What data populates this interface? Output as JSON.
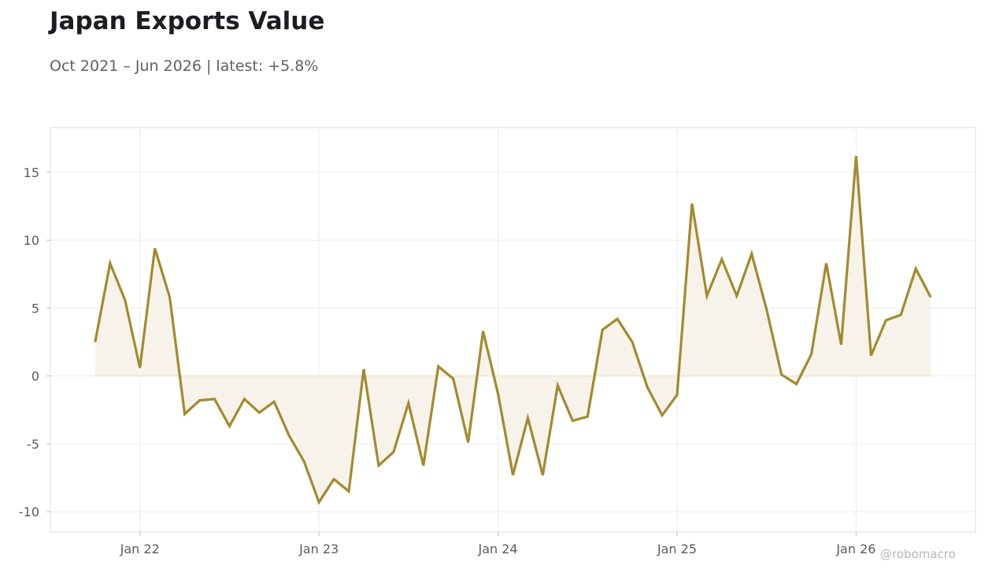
{
  "header": {
    "title": "Japan Exports Value",
    "subtitle": "Oct 2021 – Jun 2026 | latest: +5.8%"
  },
  "watermark": "@robomacro",
  "colors": {
    "line": "#a38a2f",
    "fill": "#f7f3ea",
    "grid": "#ececec",
    "frame": "#dddddd",
    "tick_text": "#5a5b63"
  },
  "chart_data": {
    "type": "line",
    "title": "Japan Exports Value",
    "subtitle": "Oct 2021 – Jun 2026 | latest: +5.8%",
    "xlabel": "",
    "ylabel": "",
    "x_start": "2021-10",
    "x_frequency": "monthly",
    "xlim": [
      "2021-07",
      "2026-09"
    ],
    "ylim": [
      -11.5,
      18.3
    ],
    "grid": true,
    "legend": "none",
    "fill_to_zero": true,
    "x_ticks": [
      {
        "date": "2022-01",
        "label": "Jan 22"
      },
      {
        "date": "2023-01",
        "label": "Jan 23"
      },
      {
        "date": "2024-01",
        "label": "Jan 24"
      },
      {
        "date": "2025-01",
        "label": "Jan 25"
      },
      {
        "date": "2026-01",
        "label": "Jan 26"
      }
    ],
    "y_ticks": [
      {
        "value": 15,
        "label": "15"
      },
      {
        "value": 10,
        "label": "10"
      },
      {
        "value": 5,
        "label": "5"
      },
      {
        "value": 0,
        "label": "0"
      },
      {
        "value": -5,
        "label": "-5"
      },
      {
        "value": -10,
        "label": "-10"
      }
    ],
    "series": [
      {
        "values": [
          2.5,
          8.3,
          5.6,
          0.6,
          9.4,
          5.8,
          -2.8,
          -1.8,
          -1.7,
          -3.7,
          -1.7,
          -2.7,
          -1.9,
          -4.4,
          -6.3,
          -9.3,
          -7.6,
          -8.5,
          0.5,
          -6.6,
          -5.6,
          -2.0,
          -6.6,
          0.7,
          -0.2,
          -4.9,
          3.3,
          -1.3,
          -7.3,
          -3.1,
          -7.3,
          -0.7,
          -3.3,
          -3.0,
          3.4,
          4.2,
          2.5,
          -0.8,
          -2.9,
          -1.4,
          12.7,
          5.9,
          8.6,
          5.9,
          9.0,
          4.9,
          0.1,
          -0.6,
          1.6,
          8.3,
          2.3,
          16.2,
          1.5,
          4.1,
          4.5,
          7.9,
          5.8
        ]
      }
    ]
  }
}
